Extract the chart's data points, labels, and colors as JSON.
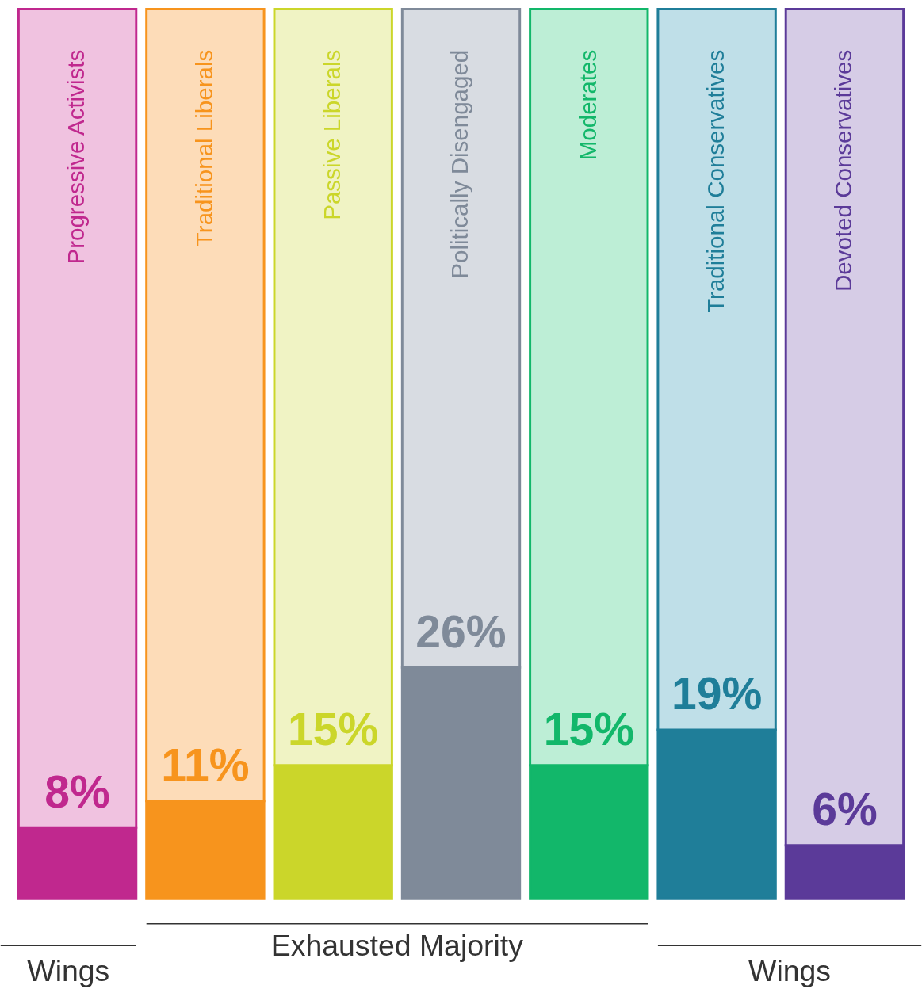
{
  "chart_data": {
    "type": "bar",
    "stacked": true,
    "categories": [
      "Progressive Activists",
      "Traditional Liberals",
      "Passive Liberals",
      "Politically Disengaged",
      "Moderates",
      "Traditional Conservatives",
      "Devoted Conservatives"
    ],
    "series": [
      {
        "values": [
          8,
          11,
          15,
          26,
          15,
          19,
          6
        ],
        "value_labels": [
          "8%",
          "11%",
          "15%",
          "26%",
          "15%",
          "19%",
          "6%"
        ],
        "colors": [
          "#c0288e",
          "#f7941d",
          "#cbd62a",
          "#7f8a99",
          "#12b76a",
          "#1f7e99",
          "#5b3a99"
        ]
      },
      {
        "values": [
          92,
          89,
          85,
          74,
          85,
          81,
          94
        ],
        "colors": [
          "#f0c2e0",
          "#fddcb8",
          "#f0f3c4",
          "#d8dce2",
          "#bdeed6",
          "#bfdfe8",
          "#d6cce6"
        ]
      }
    ],
    "tick_labels": false,
    "annotations": [
      "Wings",
      "Exhausted Majority",
      "Wings"
    ]
  }
}
